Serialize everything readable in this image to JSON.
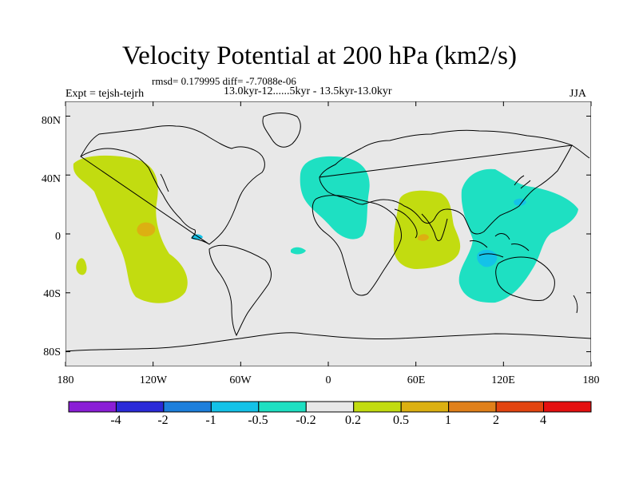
{
  "title": "Velocity Potential at 200 hPa (km2/s)",
  "stats": "rmsd= 0.179995 diff= -7.7088e-06",
  "expt": "Expt = tejsh-tejrh",
  "period": "13.0kyr-12......5kyr - 13.5kyr-13.0kyr",
  "season": "JJA",
  "lat_labels": [
    "80N",
    "40N",
    "0",
    "40S",
    "80S"
  ],
  "lon_labels": [
    "180",
    "120W",
    "60W",
    "0",
    "60E",
    "120E",
    "180"
  ],
  "colorbar": {
    "labels": [
      "-4",
      "-2",
      "-1",
      "-0.5",
      "-0.2",
      "0.2",
      "0.5",
      "1",
      "2",
      "4"
    ],
    "colors": [
      "#8a1ed6",
      "#2a2ad8",
      "#1d7fdc",
      "#14c2e8",
      "#1ee0c2",
      "#e8e8e8",
      "#c2dc10",
      "#dcb012",
      "#e0801a",
      "#e24410",
      "#e41010"
    ]
  },
  "colors": {
    "ocean": "#e8e8e8",
    "coast": "#000000",
    "positive_weak": "#c2dc10",
    "positive_mid": "#dcb012",
    "negative_weak": "#1ee0c2",
    "negative_mid": "#14c2e8"
  },
  "map_data": {
    "projection": "cylindrical-equidistant",
    "lon_range": [
      -180,
      180
    ],
    "lat_range": [
      -90,
      90
    ],
    "contour_regions": [
      {
        "name": "north-pacific-positive",
        "level_bin": "0.2 to 0.5"
      },
      {
        "name": "central-pacific-positive-core",
        "level_bin": "0.5 to 1"
      },
      {
        "name": "south-pacific-small-positive",
        "level_bin": "0.2 to 0.5"
      },
      {
        "name": "north-atlantic-africa-negative",
        "level_bin": "-0.5 to -0.2"
      },
      {
        "name": "east-africa-indian-positive",
        "level_bin": "0.2 to 0.5"
      },
      {
        "name": "indian-ocean-positive-core",
        "level_bin": "0.5 to 1"
      },
      {
        "name": "west-pacific-negative",
        "level_bin": "-0.5 to -0.2"
      },
      {
        "name": "maritime-continent-negative-core",
        "level_bin": "-1 to -0.5"
      },
      {
        "name": "western-pacific-negative-core",
        "level_bin": "-1 to -0.5"
      }
    ]
  }
}
